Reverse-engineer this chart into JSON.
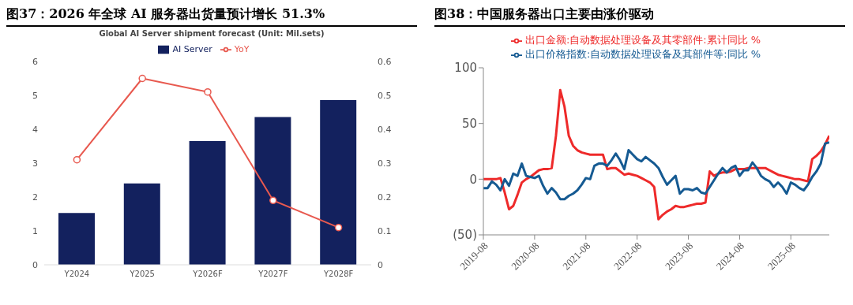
{
  "chart_data": [
    {
      "type": "bar",
      "title": "图37：2026 年全球 AI 服务器出货量预计增长 51.3%",
      "subtitle": "Global AI Server shipment forecast (Unit: Mil.sets)",
      "categories": [
        "Y2024",
        "Y2025",
        "Y2026F",
        "Y2027F",
        "Y2028F"
      ],
      "series": [
        {
          "name": "AI Server",
          "color": "#13215e",
          "values": [
            1.53,
            2.4,
            3.65,
            4.36,
            4.86
          ]
        },
        {
          "name": "YoY",
          "type": "line",
          "axis": "y2",
          "color": "#e8594f",
          "values": [
            0.31,
            0.55,
            0.51,
            0.19,
            0.11
          ]
        }
      ],
      "ylim": [
        0,
        6
      ],
      "yticks": [
        0,
        1,
        2,
        3,
        4,
        5,
        6
      ],
      "y2lim": [
        0,
        0.6
      ],
      "y2ticks": [
        0,
        0.1,
        0.2,
        0.3,
        0.4,
        0.5,
        0.6
      ],
      "legend": "top",
      "marker": "circle"
    },
    {
      "type": "line",
      "title": "图38：中国服务器出口主要由涨价驱动",
      "x": [
        "2019-08",
        "2019-09",
        "2019-10",
        "2019-11",
        "2019-12",
        "2020-01",
        "2020-02",
        "2020-03",
        "2020-04",
        "2020-05",
        "2020-06",
        "2020-07",
        "2020-08",
        "2020-09",
        "2020-10",
        "2020-11",
        "2020-12",
        "2021-01",
        "2021-02",
        "2021-03",
        "2021-04",
        "2021-05",
        "2021-06",
        "2021-07",
        "2021-08",
        "2021-09",
        "2021-10",
        "2021-11",
        "2021-12",
        "2022-01",
        "2022-02",
        "2022-03",
        "2022-04",
        "2022-05",
        "2022-06",
        "2022-07",
        "2022-08",
        "2022-09",
        "2022-10",
        "2022-11",
        "2022-12",
        "2023-01",
        "2023-02",
        "2023-03",
        "2023-04",
        "2023-05",
        "2023-06",
        "2023-07",
        "2023-08",
        "2023-09",
        "2023-10",
        "2023-11",
        "2023-12",
        "2024-01",
        "2024-02",
        "2024-03",
        "2024-04",
        "2024-05",
        "2024-06",
        "2024-07",
        "2024-08",
        "2024-09",
        "2024-10",
        "2024-11",
        "2024-12",
        "2025-01",
        "2025-02",
        "2025-03",
        "2025-04",
        "2025-05",
        "2025-06",
        "2025-07",
        "2025-08",
        "2025-09",
        "2025-10",
        "2025-11",
        "2025-12",
        "2026-01",
        "2026-02",
        "2026-03",
        "2026-04",
        "2026-05"
      ],
      "series": [
        {
          "name": "出口金额:自动数据处理设备及其零部件:累计同比 %",
          "color": "#ee2a2a",
          "values": [
            0,
            0,
            0,
            0,
            1,
            -12,
            -27,
            -24,
            -14,
            -3,
            0,
            2,
            5,
            8,
            9,
            9,
            10,
            39,
            80,
            65,
            39,
            30,
            26,
            24,
            23,
            22,
            22,
            22,
            22,
            9,
            10,
            10,
            7,
            4,
            5,
            4,
            3,
            1,
            -1,
            -3,
            -7,
            -36,
            -32,
            -29,
            -27,
            -24,
            -25,
            -25,
            -24,
            -23,
            -22,
            -22,
            -21,
            7,
            3,
            5,
            6,
            6,
            7,
            9,
            9,
            9,
            10,
            10,
            10,
            10,
            10,
            8,
            6,
            4,
            3,
            2,
            1,
            0,
            0,
            -1,
            -2,
            18,
            21,
            25,
            31,
            39
          ]
        },
        {
          "name": "出口价格指数:自动数据处理设备及其部件等:同比 %",
          "color": "#155a92",
          "values": [
            -8,
            -8,
            -2,
            -5,
            -10,
            0,
            -6,
            5,
            3,
            14,
            3,
            2,
            1,
            3,
            -6,
            -13,
            -8,
            -12,
            -18,
            -18,
            -15,
            -13,
            -10,
            -5,
            1,
            0,
            12,
            14,
            14,
            12,
            17,
            23,
            17,
            9,
            26,
            22,
            18,
            16,
            20,
            17,
            14,
            10,
            2,
            -5,
            -1,
            3,
            -13,
            -9,
            -9,
            -10,
            -8,
            -12,
            -13,
            -7,
            -1,
            5,
            10,
            6,
            10,
            12,
            3,
            8,
            8,
            15,
            10,
            3,
            0,
            -2,
            -7,
            -3,
            -7,
            -13,
            -3,
            -5,
            -8,
            -10,
            -5,
            2,
            7,
            14,
            32,
            33
          ]
        }
      ],
      "xlim": [
        "2019-08",
        "2026-05"
      ],
      "xticks": [
        "2019-08",
        "2020-08",
        "2021-08",
        "2022-08",
        "2023-08",
        "2024-08",
        "2025-08"
      ],
      "ylim": [
        -50,
        100
      ],
      "yticks": [
        {
          "value": -50,
          "label": "(50)"
        },
        0,
        50,
        100
      ],
      "legend": "top",
      "marker": "none"
    }
  ]
}
